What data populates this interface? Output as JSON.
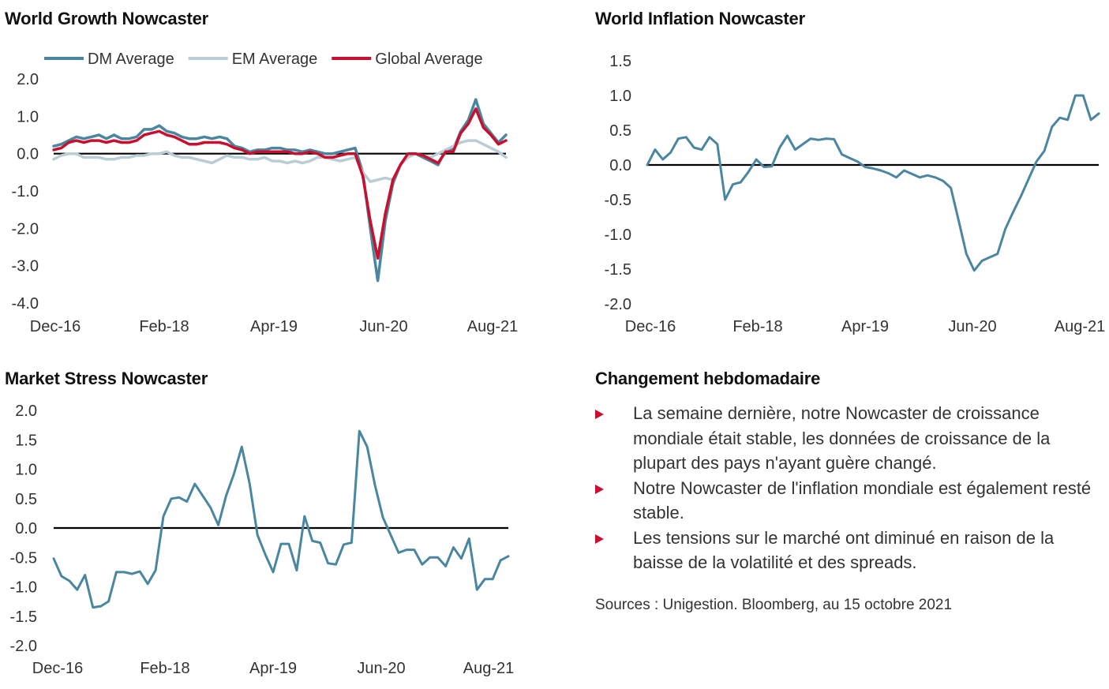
{
  "panels": {
    "growth_title": "World Growth Nowcaster",
    "inflation_title": "World Inflation Nowcaster",
    "stress_title": "Market Stress Nowcaster",
    "change_title": "Changement hebdomadaire"
  },
  "bullets": [
    "La semaine dernière, notre Nowcaster de croissance mondiale était stable, les données de croissance de la plupart des pays n'ayant guère changé.",
    "Notre Nowcaster de l'inflation mondiale est également resté stable.",
    "Les tensions sur le marché ont diminué en raison de la baisse de la volatilité et des spreads."
  ],
  "sources": "Sources : Unigestion. Bloomberg, au 15 octobre 2021",
  "colors": {
    "dm": "#4a86a0",
    "em": "#b9cdd6",
    "global": "#c8102e",
    "line": "#4a86a0",
    "zero": "#000000",
    "marker": "#c8102e"
  },
  "chart_data": [
    {
      "type": "line",
      "title": "World Growth Nowcaster",
      "x_tick_labels": [
        "Dec-16",
        "Feb-18",
        "Apr-19",
        "Jun-20",
        "Aug-21"
      ],
      "y_tick_labels": [
        "2.0",
        "1.0",
        "0.0",
        "-1.0",
        "-2.0",
        "-3.0",
        "-4.0"
      ],
      "ylim": [
        -4.0,
        2.0
      ],
      "zero_line": true,
      "legend_position": "top",
      "series": [
        {
          "name": "DM Average",
          "color": "#4a86a0",
          "values": [
            0.2,
            0.25,
            0.35,
            0.45,
            0.4,
            0.45,
            0.5,
            0.4,
            0.5,
            0.4,
            0.4,
            0.45,
            0.65,
            0.65,
            0.75,
            0.6,
            0.55,
            0.45,
            0.4,
            0.4,
            0.45,
            0.4,
            0.45,
            0.4,
            0.2,
            0.15,
            0.05,
            0.1,
            0.1,
            0.15,
            0.15,
            0.1,
            0.1,
            0.05,
            0.1,
            0.05,
            0.0,
            0.0,
            0.05,
            0.1,
            0.15,
            -0.5,
            -2.0,
            -3.4,
            -1.8,
            -0.8,
            -0.3,
            0.0,
            0.0,
            -0.1,
            -0.2,
            -0.3,
            0.1,
            0.1,
            0.6,
            0.9,
            1.45,
            0.8,
            0.55,
            0.3,
            0.5
          ]
        },
        {
          "name": "EM Average",
          "color": "#b9cdd6",
          "values": [
            -0.15,
            -0.05,
            0.0,
            0.0,
            -0.1,
            -0.1,
            -0.1,
            -0.15,
            -0.15,
            -0.1,
            -0.1,
            -0.05,
            -0.05,
            0.0,
            0.0,
            0.05,
            -0.05,
            -0.1,
            -0.1,
            -0.15,
            -0.2,
            -0.25,
            -0.15,
            -0.05,
            -0.1,
            -0.1,
            -0.15,
            -0.15,
            -0.1,
            -0.2,
            -0.2,
            -0.25,
            -0.2,
            -0.25,
            -0.2,
            -0.1,
            -0.1,
            -0.15,
            -0.2,
            -0.15,
            -0.1,
            -0.5,
            -0.75,
            -0.7,
            -0.65,
            -0.7,
            -0.3,
            -0.1,
            0.0,
            -0.05,
            -0.1,
            0.0,
            0.1,
            0.2,
            0.3,
            0.35,
            0.35,
            0.25,
            0.15,
            0.05,
            -0.1
          ]
        },
        {
          "name": "Global Average",
          "color": "#c8102e",
          "values": [
            0.1,
            0.15,
            0.3,
            0.35,
            0.3,
            0.35,
            0.35,
            0.3,
            0.35,
            0.3,
            0.3,
            0.35,
            0.5,
            0.55,
            0.6,
            0.5,
            0.45,
            0.35,
            0.25,
            0.25,
            0.3,
            0.3,
            0.3,
            0.25,
            0.15,
            0.1,
            0.0,
            0.05,
            0.05,
            0.05,
            0.05,
            0.05,
            0.0,
            0.0,
            0.05,
            0.0,
            -0.1,
            -0.1,
            -0.05,
            0.0,
            0.0,
            -0.6,
            -1.8,
            -2.8,
            -1.6,
            -0.7,
            -0.3,
            0.0,
            0.0,
            -0.05,
            -0.15,
            -0.25,
            0.05,
            0.05,
            0.55,
            0.8,
            1.2,
            0.7,
            0.5,
            0.25,
            0.35
          ]
        }
      ]
    },
    {
      "type": "line",
      "title": "World Inflation Nowcaster",
      "x_tick_labels": [
        "Dec-16",
        "Feb-18",
        "Apr-19",
        "Jun-20",
        "Aug-21"
      ],
      "y_tick_labels": [
        "1.5",
        "1.0",
        "0.5",
        "0.0",
        "-0.5",
        "-1.0",
        "-1.5",
        "-2.0"
      ],
      "ylim": [
        -2.0,
        1.5
      ],
      "zero_line": true,
      "series": [
        {
          "name": "",
          "color": "#4a86a0",
          "values": [
            0.0,
            0.22,
            0.08,
            0.18,
            0.38,
            0.4,
            0.25,
            0.22,
            0.4,
            0.3,
            -0.5,
            -0.28,
            -0.25,
            -0.1,
            0.08,
            -0.03,
            -0.02,
            0.25,
            0.42,
            0.22,
            0.3,
            0.38,
            0.36,
            0.38,
            0.37,
            0.15,
            0.1,
            0.05,
            -0.03,
            -0.05,
            -0.08,
            -0.12,
            -0.18,
            -0.08,
            -0.13,
            -0.18,
            -0.15,
            -0.18,
            -0.23,
            -0.33,
            -0.8,
            -1.28,
            -1.52,
            -1.38,
            -1.33,
            -1.28,
            -0.92,
            -0.68,
            -0.45,
            -0.2,
            0.05,
            0.2,
            0.55,
            0.68,
            0.65,
            1.0,
            1.0,
            0.65,
            0.74
          ]
        }
      ]
    },
    {
      "type": "line",
      "title": "Market Stress Nowcaster",
      "x_tick_labels": [
        "Dec-16",
        "Feb-18",
        "Apr-19",
        "Jun-20",
        "Aug-21"
      ],
      "y_tick_labels": [
        "2.0",
        "1.5",
        "1.0",
        "0.5",
        "0.0",
        "-0.5",
        "-1.0",
        "-1.5",
        "-2.0"
      ],
      "ylim": [
        -2.0,
        2.0
      ],
      "zero_line": true,
      "series": [
        {
          "name": "",
          "color": "#4a86a0",
          "values": [
            -0.52,
            -0.82,
            -0.9,
            -1.05,
            -0.8,
            -1.35,
            -1.33,
            -1.25,
            -0.75,
            -0.75,
            -0.78,
            -0.74,
            -0.95,
            -0.72,
            0.2,
            0.5,
            0.52,
            0.45,
            0.75,
            0.55,
            0.35,
            0.05,
            0.55,
            0.92,
            1.38,
            0.75,
            -0.12,
            -0.45,
            -0.75,
            -0.27,
            -0.27,
            -0.72,
            0.2,
            -0.22,
            -0.25,
            -0.6,
            -0.62,
            -0.28,
            -0.25,
            1.65,
            1.38,
            0.72,
            0.18,
            -0.12,
            -0.42,
            -0.37,
            -0.37,
            -0.62,
            -0.5,
            -0.5,
            -0.65,
            -0.33,
            -0.52,
            -0.18,
            -1.05,
            -0.87,
            -0.87,
            -0.55,
            -0.48
          ]
        }
      ]
    }
  ]
}
